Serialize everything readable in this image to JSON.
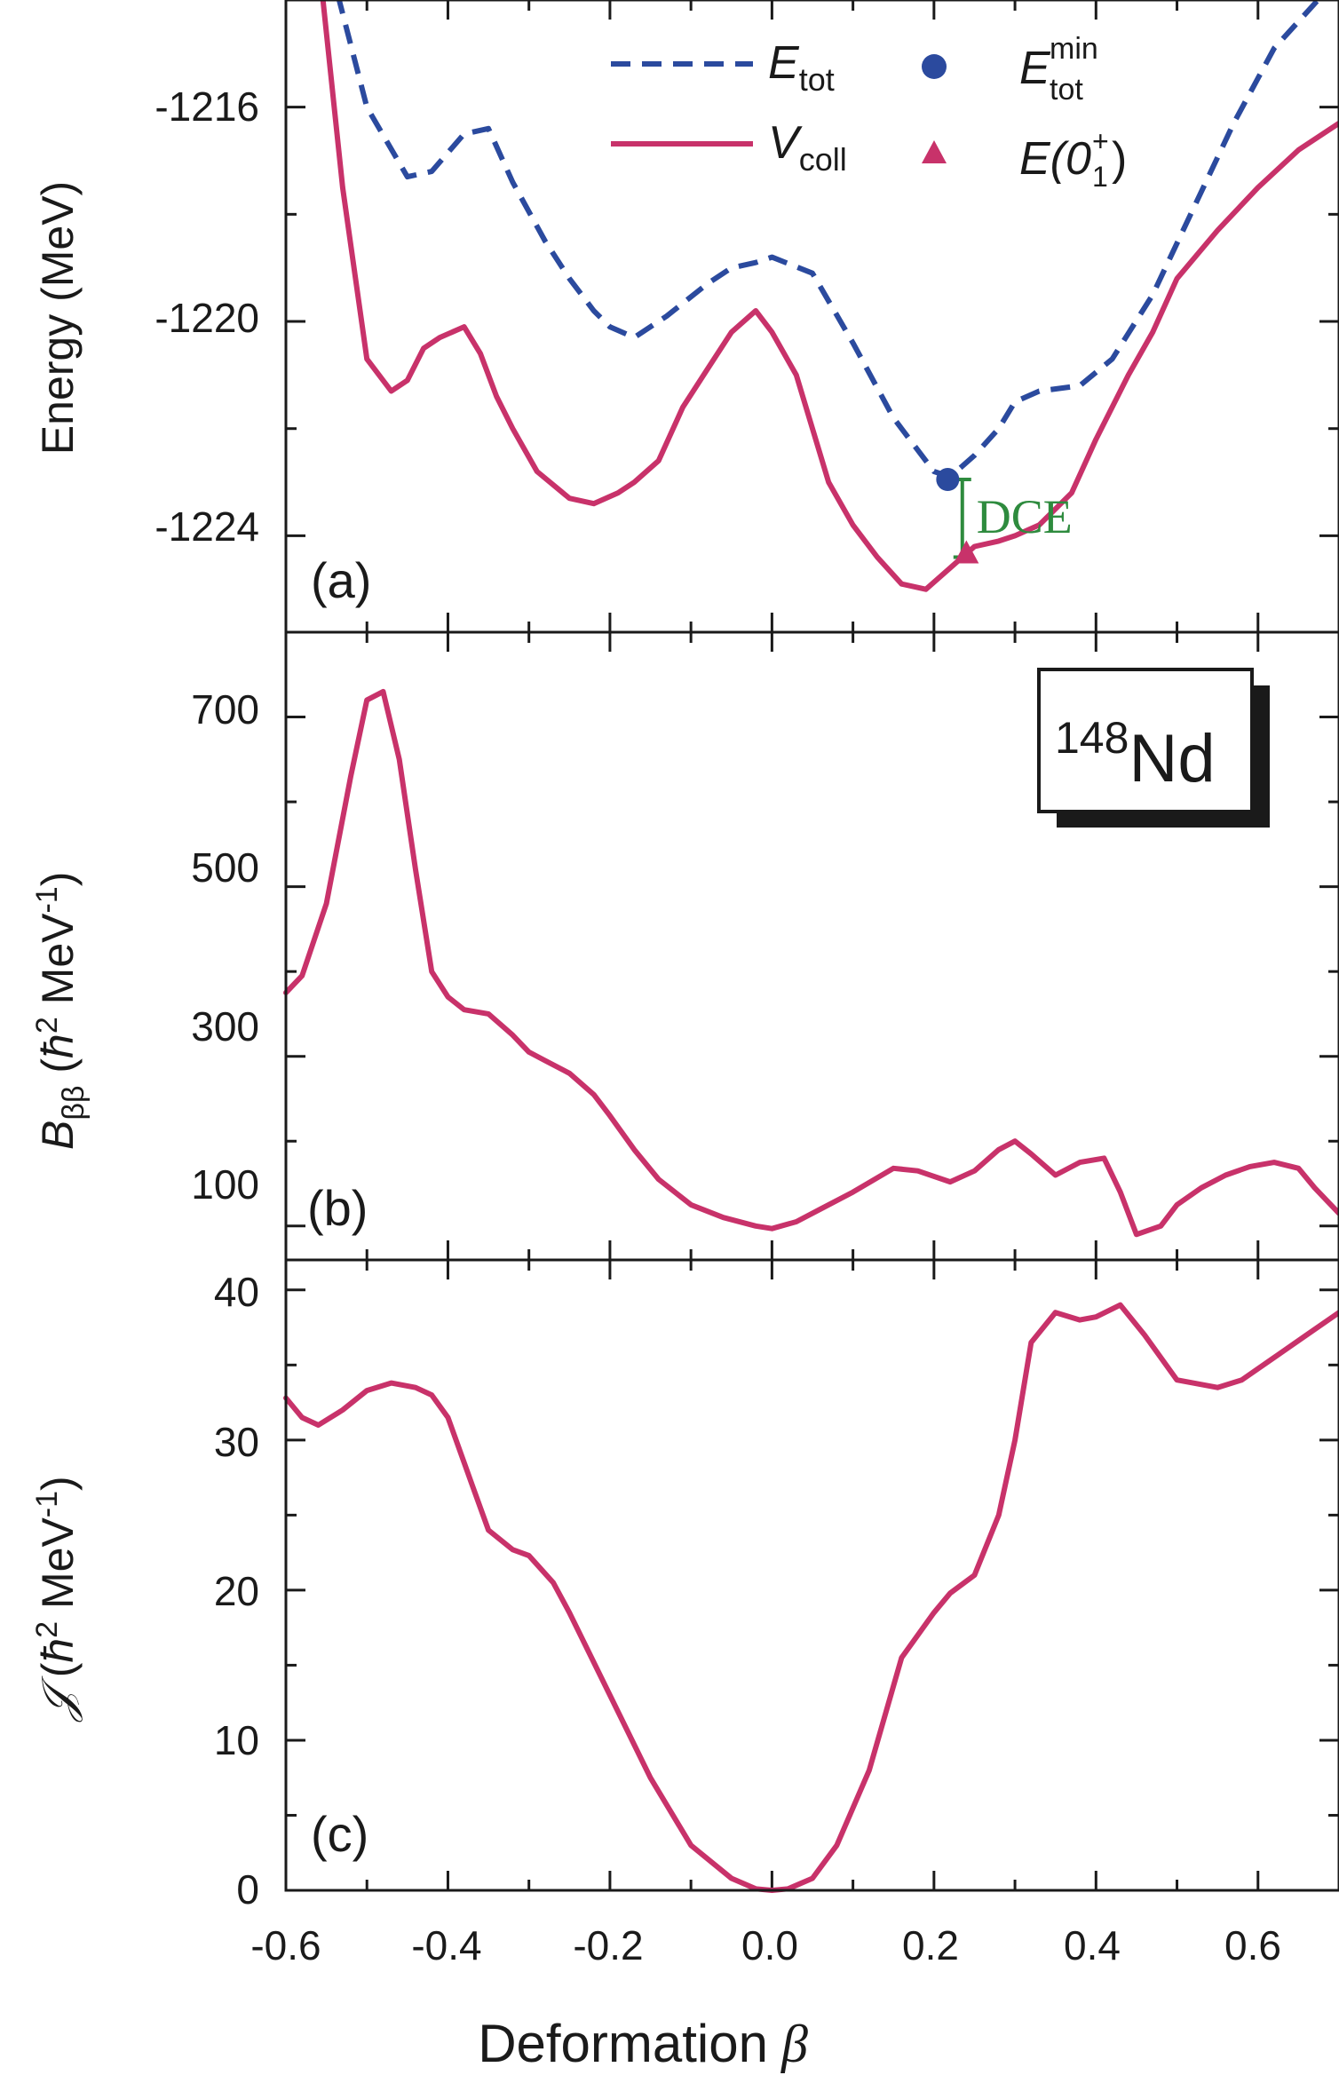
{
  "figure": {
    "shared_x_axis": {
      "label_text": "Deformation",
      "label_symbol": "β",
      "ticks": [
        "-0.6",
        "-0.4",
        "-0.2",
        "0.0",
        "0.2",
        "0.4",
        "0.6"
      ],
      "range": [
        -0.6,
        0.7
      ]
    },
    "nucleus_label": {
      "mass_number": "148",
      "element": "Nd"
    },
    "colors": {
      "e_tot": "#2b4a9e",
      "v_coll": "#c8326a",
      "dce": "#2e8b3e",
      "axis": "#1a1a1a"
    }
  },
  "chart_data": [
    {
      "panel": "(a)",
      "type": "line",
      "ylabel": "Energy (MeV)",
      "ylim": [
        -1225.8,
        -1214.0
      ],
      "yticks": [
        "-1216",
        "-1220",
        "-1224"
      ],
      "legend": {
        "placement": "top-right",
        "entries": [
          {
            "symbol": "E",
            "subscript": "tot",
            "style": "dashed-line"
          },
          {
            "symbol": "V",
            "subscript": "coll",
            "style": "solid-line"
          },
          {
            "symbol": "E",
            "superscript": "min",
            "subscript": "tot",
            "style": "circle-marker"
          },
          {
            "prefix": "E(0",
            "superscript": "+",
            "subscript": "1",
            "suffix": ")",
            "style": "triangle-marker"
          }
        ]
      },
      "series": [
        {
          "name": "E_tot",
          "style": "dashed",
          "x": [
            -0.536,
            -0.5,
            -0.45,
            -0.42,
            -0.38,
            -0.35,
            -0.32,
            -0.28,
            -0.25,
            -0.22,
            -0.2,
            -0.17,
            -0.13,
            -0.08,
            -0.05,
            -0.02,
            0.0,
            0.05,
            0.1,
            0.15,
            0.2,
            0.22,
            0.25,
            0.28,
            0.3,
            0.33,
            0.38,
            0.42,
            0.47,
            0.52,
            0.57,
            0.62,
            0.68
          ],
          "y": [
            -1213.9,
            -1216.0,
            -1217.3,
            -1217.2,
            -1216.5,
            -1216.4,
            -1217.4,
            -1218.5,
            -1219.2,
            -1219.8,
            -1220.1,
            -1220.3,
            -1219.9,
            -1219.3,
            -1219.0,
            -1218.9,
            -1218.8,
            -1219.1,
            -1220.4,
            -1221.8,
            -1222.8,
            -1222.9,
            -1222.5,
            -1222.0,
            -1221.5,
            -1221.3,
            -1221.2,
            -1220.7,
            -1219.5,
            -1217.9,
            -1216.3,
            -1214.9,
            -1213.9
          ]
        },
        {
          "name": "V_coll",
          "style": "solid",
          "x": [
            -0.555,
            -0.53,
            -0.5,
            -0.47,
            -0.45,
            -0.43,
            -0.41,
            -0.38,
            -0.36,
            -0.34,
            -0.32,
            -0.29,
            -0.25,
            -0.22,
            -0.19,
            -0.17,
            -0.14,
            -0.11,
            -0.08,
            -0.05,
            -0.02,
            0.0,
            0.03,
            0.05,
            0.07,
            0.1,
            0.13,
            0.16,
            0.19,
            0.22,
            0.25,
            0.28,
            0.3,
            0.33,
            0.37,
            0.4,
            0.44,
            0.47,
            0.5,
            0.55,
            0.6,
            0.65,
            0.7
          ],
          "y": [
            -1213.9,
            -1217.5,
            -1220.7,
            -1221.3,
            -1221.1,
            -1220.5,
            -1220.3,
            -1220.1,
            -1220.6,
            -1221.4,
            -1222.0,
            -1222.8,
            -1223.3,
            -1223.4,
            -1223.2,
            -1223.0,
            -1222.6,
            -1221.6,
            -1220.9,
            -1220.2,
            -1219.8,
            -1220.2,
            -1221.0,
            -1222.0,
            -1223.0,
            -1223.8,
            -1224.4,
            -1224.9,
            -1225.0,
            -1224.6,
            -1224.2,
            -1224.1,
            -1224.0,
            -1223.8,
            -1223.2,
            -1222.2,
            -1221.0,
            -1220.2,
            -1219.2,
            -1218.3,
            -1217.5,
            -1216.8,
            -1216.3
          ]
        }
      ],
      "markers": [
        {
          "name": "E_tot^min",
          "shape": "circle",
          "x": 0.217,
          "y": -1222.95
        },
        {
          "name": "E(0_1^+)",
          "shape": "triangle",
          "x": 0.24,
          "y": -1224.35
        }
      ],
      "annotation": {
        "text": "DCE",
        "x": 0.235,
        "y_top": -1222.95,
        "y_bottom": -1224.4
      }
    },
    {
      "panel": "(b)",
      "type": "line",
      "ylabel_main": "B",
      "ylabel_sub": "ββ",
      "ylabel_unit_open": "(",
      "ylabel_hbar": "ħ",
      "ylabel_sup": "2",
      "ylabel_unit": " MeV",
      "ylabel_unit_sup": "-1",
      "ylabel_close": ")",
      "ylim": [
        60,
        800
      ],
      "yticks": [
        "100",
        "300",
        "500",
        "700"
      ],
      "series": [
        {
          "name": "",
          "style": "solid",
          "x": [
            -0.6,
            -0.58,
            -0.55,
            -0.52,
            -0.5,
            -0.48,
            -0.46,
            -0.44,
            -0.42,
            -0.4,
            -0.38,
            -0.35,
            -0.32,
            -0.3,
            -0.28,
            -0.25,
            -0.22,
            -0.2,
            -0.17,
            -0.14,
            -0.1,
            -0.06,
            -0.02,
            0.0,
            0.03,
            0.06,
            0.1,
            0.15,
            0.18,
            0.22,
            0.25,
            0.28,
            0.3,
            0.32,
            0.35,
            0.38,
            0.41,
            0.43,
            0.45,
            0.48,
            0.5,
            0.53,
            0.56,
            0.59,
            0.62,
            0.65,
            0.67,
            0.7
          ],
          "y": [
            375,
            395,
            480,
            630,
            720,
            730,
            650,
            520,
            400,
            370,
            355,
            350,
            325,
            305,
            295,
            280,
            255,
            230,
            190,
            155,
            125,
            110,
            100,
            97,
            105,
            120,
            140,
            168,
            165,
            152,
            165,
            190,
            200,
            185,
            160,
            175,
            180,
            140,
            90,
            100,
            125,
            145,
            160,
            170,
            175,
            168,
            145,
            115
          ]
        }
      ]
    },
    {
      "panel": "(c)",
      "type": "line",
      "ylabel_main": "𝒥",
      "ylabel_unit_open": "(",
      "ylabel_hbar": "ħ",
      "ylabel_sup": "2",
      "ylabel_unit": " MeV",
      "ylabel_unit_sup": "-1",
      "ylabel_close": ")",
      "ylim": [
        0,
        42
      ],
      "yticks": [
        "0",
        "10",
        "20",
        "30",
        "40"
      ],
      "series": [
        {
          "name": "",
          "style": "solid",
          "x": [
            -0.6,
            -0.58,
            -0.56,
            -0.53,
            -0.5,
            -0.47,
            -0.44,
            -0.42,
            -0.4,
            -0.37,
            -0.35,
            -0.32,
            -0.3,
            -0.27,
            -0.25,
            -0.2,
            -0.15,
            -0.1,
            -0.05,
            -0.02,
            0.0,
            0.02,
            0.05,
            0.08,
            0.12,
            0.16,
            0.2,
            0.22,
            0.25,
            0.28,
            0.3,
            0.32,
            0.35,
            0.38,
            0.4,
            0.43,
            0.46,
            0.5,
            0.55,
            0.58,
            0.62,
            0.66,
            0.7
          ],
          "y": [
            32.8,
            31.5,
            31.0,
            32.0,
            33.3,
            33.8,
            33.5,
            33.0,
            31.5,
            27.0,
            24.0,
            22.7,
            22.3,
            20.5,
            18.5,
            13.0,
            7.5,
            3.0,
            0.8,
            0.1,
            0.0,
            0.1,
            0.8,
            3.0,
            8.0,
            15.5,
            18.5,
            19.8,
            21.0,
            25.0,
            30.0,
            36.5,
            38.5,
            38.0,
            38.2,
            39.0,
            37.0,
            34.0,
            33.5,
            34.0,
            35.5,
            37.0,
            38.5
          ]
        }
      ]
    }
  ]
}
